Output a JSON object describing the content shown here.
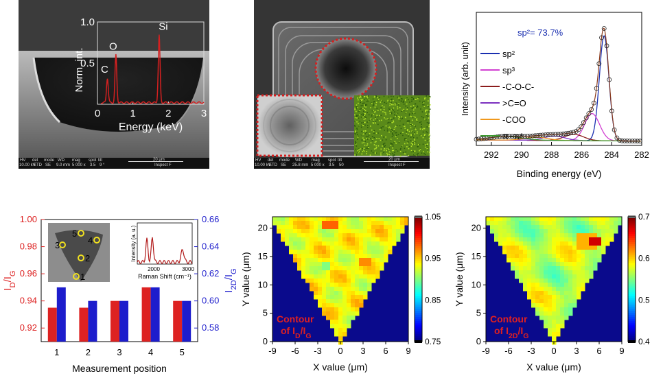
{
  "colors": {
    "red": "#dd2222",
    "blue": "#1d1dcc",
    "sp2": "#1a2fb0",
    "sp3": "#d13fd1",
    "coc": "#8b1c1c",
    "co": "#7b2fbf",
    "coo": "#f0981c",
    "pipi": "#3d9a30",
    "eds": "#d42020"
  },
  "panel_a": {
    "sem_bar": {
      "hv": "HV",
      "det": "det",
      "mode": "mode",
      "wd": "WD",
      "mag": "mag",
      "spot": "spot",
      "tilt": "tilt",
      "hv_val": "10.00 kV",
      "det_val": "ETD",
      "mode_val": "SE",
      "wd_val": "9.0 mm",
      "mag_val": "5 000 x",
      "spot_val": "3.5",
      "tilt_val": "9 °",
      "scale": "20 µm",
      "instrument": "Inspect F"
    }
  },
  "panel_b": {
    "sem_bar": {
      "hv": "HV",
      "det": "det",
      "mode": "mode",
      "wd": "WD",
      "mag": "mag",
      "spot": "spot",
      "tilt": "tilt",
      "hv_val": "10.00 kV",
      "det_val": "ETD",
      "mode_val": "SE",
      "wd_val": "25.8 mm",
      "mag_val": "5 000 x",
      "spot_val": "3.5",
      "tilt_val": "50",
      "scale": "20 µm",
      "instrument": "Inspect F"
    }
  },
  "chart_data": [
    {
      "type": "line",
      "id": "eds",
      "xlabel": "Energy (keV)",
      "ylabel": "Norm. int.",
      "xlim": [
        0,
        3
      ],
      "ylim": [
        0,
        1.0
      ],
      "xticks": [
        0,
        1,
        2,
        3
      ],
      "yticks": [
        0.5,
        1.0
      ],
      "ytick_labels": [
        "0.5",
        "1.0"
      ],
      "peaks": [
        {
          "label": "C",
          "x": 0.28,
          "y": 0.3
        },
        {
          "label": "O",
          "x": 0.52,
          "y": 0.58
        },
        {
          "label": "Si",
          "x": 1.74,
          "y": 0.82
        }
      ]
    },
    {
      "type": "line",
      "id": "xps",
      "xlabel": "Binding energy (eV)",
      "ylabel": "Intensity (arb. unit)",
      "xlim": [
        293,
        282
      ],
      "xticks": [
        292,
        290,
        288,
        286,
        284,
        282
      ],
      "annotation": "sp²= 73.7%",
      "legend": [
        "sp²",
        "sp³",
        "-C-O-C-",
        ">C=O",
        "-COO",
        "π−π*"
      ],
      "series": [
        {
          "name": "sp²",
          "center": 284.5,
          "height": 0.85,
          "width": 0.45
        },
        {
          "name": "sp³",
          "center": 285.3,
          "height": 0.22,
          "width": 0.7
        },
        {
          "name": "-C-O-C-",
          "center": 286.5,
          "height": 0.05,
          "width": 0.9
        },
        {
          "name": ">C=O",
          "center": 287.8,
          "height": 0.035,
          "width": 1.0
        },
        {
          "name": "-COO",
          "center": 289.0,
          "height": 0.025,
          "width": 1.1
        },
        {
          "name": "π−π*",
          "center": 291.0,
          "height": 0.03,
          "width": 1.5
        }
      ]
    },
    {
      "type": "bar",
      "id": "raman_ratio",
      "xlabel": "Measurement position",
      "ylabel_left": "I_D/I_G",
      "ylabel_right": "I_2D/I_G",
      "categories": [
        "1",
        "2",
        "3",
        "4",
        "5"
      ],
      "ylim_left": [
        0.91,
        1.0
      ],
      "yticks_left": [
        0.92,
        0.94,
        0.96,
        0.98,
        1.0
      ],
      "ytick_labels_left": [
        "0.92",
        "0.94",
        "0.96",
        "0.98",
        "1.00"
      ],
      "ylim_right": [
        0.57,
        0.66
      ],
      "yticks_right": [
        0.58,
        0.6,
        0.62,
        0.64,
        0.66
      ],
      "ytick_labels_right": [
        "0.58",
        "0.60",
        "0.62",
        "0.64",
        "0.66"
      ],
      "series": [
        {
          "name": "I_D/I_G",
          "axis": "left",
          "values": [
            0.935,
            0.935,
            0.94,
            0.95,
            0.94
          ]
        },
        {
          "name": "I_2D/I_G",
          "axis": "right",
          "values": [
            0.61,
            0.6,
            0.6,
            0.61,
            0.6
          ]
        }
      ],
      "inset_photo_labels": [
        "1",
        "2",
        "3",
        "4",
        "5"
      ],
      "inset_spectrum": {
        "xlabel": "Raman Shift (cm⁻¹)",
        "ylabel": "Intensity (a. u.)",
        "xticks": [
          "2000",
          "3000"
        ]
      }
    },
    {
      "type": "heatmap",
      "id": "contour_idig",
      "xlabel": "X value (μm)",
      "ylabel": "Y value (μm)",
      "xticks": [
        -9,
        -6,
        -3,
        0,
        3,
        6,
        9
      ],
      "yticks": [
        0,
        5,
        10,
        15,
        20
      ],
      "xtick_labels": [
        "-9",
        "-6",
        "-3",
        "0",
        "3",
        "6",
        "9"
      ],
      "ytick_labels": [
        "0",
        "5",
        "10",
        "15",
        "20"
      ],
      "colorbar": {
        "min": 0.75,
        "max": 1.05,
        "ticks": [
          "0.75",
          "0.85",
          "0.95",
          "1.05"
        ]
      },
      "label_line1": "Contour",
      "label_line2": "of I_D/I_G"
    },
    {
      "type": "heatmap",
      "id": "contour_i2dig",
      "xlabel": "X value (μm)",
      "ylabel": "Y value (μm)",
      "xticks": [
        -9,
        -6,
        -3,
        0,
        3,
        6,
        9
      ],
      "yticks": [
        0,
        5,
        10,
        15,
        20
      ],
      "xtick_labels": [
        "-9",
        "-6",
        "-3",
        "0",
        "3",
        "6",
        "9"
      ],
      "ytick_labels": [
        "0",
        "5",
        "10",
        "15",
        "20"
      ],
      "colorbar": {
        "min": 0.4,
        "max": 0.7,
        "ticks": [
          "0.4",
          "0.5",
          "0.6",
          "0.7"
        ]
      },
      "label_line1": "Contour",
      "label_line2": "of I_2D/I_G"
    }
  ]
}
